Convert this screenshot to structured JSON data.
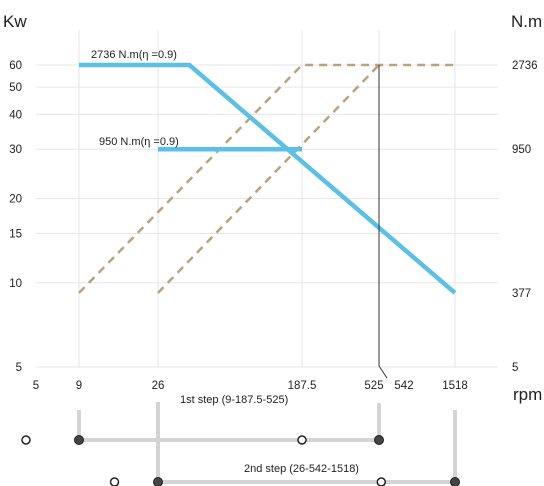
{
  "chart_data": {
    "type": "line",
    "title": "",
    "xlabel": "rpm",
    "ylabel_left": "Kw",
    "ylabel_right": "N.m",
    "x_scale": "log",
    "x_ticks": [
      "5",
      "9",
      "26",
      "187.5",
      "525",
      "542",
      "1518"
    ],
    "y_left_scale": "log",
    "y_left_ticks": [
      "5",
      "10",
      "15",
      "20",
      "30",
      "40",
      "50",
      "60"
    ],
    "y_right_ticks": [
      "5",
      "377",
      "950",
      "2736"
    ],
    "grid": true,
    "colors": {
      "power": "#5bc0e8",
      "torque": "#b8a47a",
      "marker_line": "#333333",
      "step_bar": "#d4d4d4"
    },
    "series": [
      {
        "kind": "power",
        "label": "2736 N.m(η =0.9)",
        "x": [
          9,
          40,
          1518
        ],
        "y": [
          60,
          60,
          9.2
        ]
      },
      {
        "kind": "power",
        "label": "950 N.m(η =0.9)",
        "x": [
          26,
          187.5
        ],
        "y": [
          30,
          30
        ]
      },
      {
        "kind": "torque",
        "x": [
          9,
          187.5,
          1518
        ],
        "y": [
          9.2,
          60,
          60
        ]
      },
      {
        "kind": "torque",
        "x": [
          26,
          525
        ],
        "y": [
          9.2,
          60
        ]
      }
    ],
    "vertical_marker": {
      "x": 525,
      "y_top": 60,
      "label_x": 542
    }
  },
  "steps": [
    {
      "label": "1st step (9-187.5-525)",
      "x_start": 9,
      "x_end": 525,
      "open_points": [
        5,
        187.5
      ],
      "filled_points": [
        9,
        525
      ]
    },
    {
      "label": "2nd step (26-542-1518)",
      "x_start": 26,
      "x_end": 1518,
      "open_points": [
        14.5,
        542
      ],
      "filled_points": [
        26,
        1518
      ]
    }
  ]
}
